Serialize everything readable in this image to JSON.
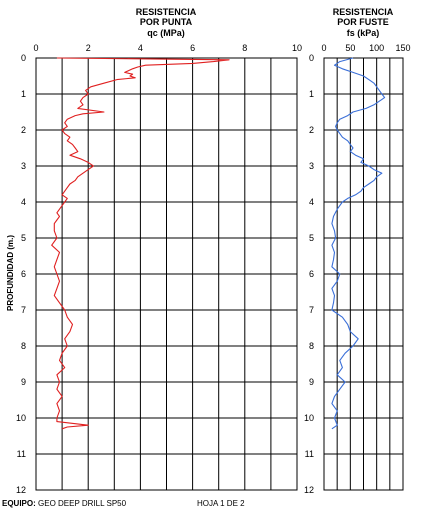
{
  "depth_axis_label": "PROFUNDIDAD (m.)",
  "footer": {
    "equipment_label": "EQUIPO:",
    "equipment_value": "GEO DEEP DRILL SP50",
    "sheet": "HOJA 1 DE 2"
  },
  "colors": {
    "qc_line": "#e02020",
    "fs_line": "#3a6fd8",
    "grid": "#000000"
  },
  "chart_data": [
    {
      "type": "line",
      "title": "RESISTENCIA POR PUNTA",
      "title_lines": [
        "RESISTENCIA",
        "POR PUNTA",
        "qc (MPa)"
      ],
      "xlabel": "qc (MPa)",
      "ylabel": "PROFUNDIDAD (m.)",
      "xlim": [
        0,
        10
      ],
      "ylim": [
        0,
        12
      ],
      "x_ticks": [
        0,
        2,
        4,
        6,
        8,
        10
      ],
      "y_ticks": [
        0,
        1,
        2,
        3,
        4,
        5,
        6,
        7,
        8,
        9,
        10,
        11,
        12
      ],
      "y_inverted": true,
      "grid": true,
      "series": [
        {
          "color": "#e02020",
          "depth": [
            0.0,
            0.05,
            0.1,
            0.15,
            0.2,
            0.25,
            0.3,
            0.4,
            0.45,
            0.5,
            0.55,
            0.6,
            0.7,
            0.8,
            0.9,
            1.0,
            1.1,
            1.2,
            1.3,
            1.4,
            1.5,
            1.55,
            1.6,
            1.7,
            1.8,
            1.9,
            2.0,
            2.1,
            2.2,
            2.3,
            2.4,
            2.5,
            2.6,
            2.7,
            2.8,
            2.9,
            3.0,
            3.1,
            3.2,
            3.3,
            3.4,
            3.5,
            3.6,
            3.7,
            3.8,
            3.9,
            4.0,
            4.1,
            4.2,
            4.3,
            4.4,
            4.5,
            4.6,
            4.8,
            5.0,
            5.2,
            5.4,
            5.6,
            5.8,
            6.0,
            6.2,
            6.4,
            6.6,
            6.8,
            7.0,
            7.2,
            7.4,
            7.6,
            7.8,
            8.0,
            8.2,
            8.4,
            8.6,
            8.8,
            9.0,
            9.2,
            9.4,
            9.6,
            9.8,
            10.0,
            10.1,
            10.2,
            10.25,
            10.3
          ],
          "qc": [
            0.8,
            7.4,
            6.8,
            6.0,
            4.2,
            3.9,
            3.7,
            3.4,
            3.7,
            3.6,
            3.8,
            3.1,
            2.6,
            2.1,
            1.9,
            2.0,
            1.8,
            1.7,
            1.8,
            1.6,
            2.6,
            1.8,
            1.5,
            1.2,
            1.1,
            1.2,
            1.0,
            1.1,
            1.3,
            1.2,
            1.4,
            1.5,
            1.6,
            1.3,
            1.7,
            2.0,
            2.2,
            2.0,
            1.8,
            1.6,
            1.5,
            1.3,
            1.2,
            1.1,
            1.0,
            1.2,
            1.1,
            1.0,
            0.9,
            0.8,
            0.9,
            0.8,
            0.7,
            0.7,
            0.8,
            0.6,
            0.9,
            0.8,
            0.7,
            0.8,
            0.9,
            0.8,
            0.7,
            0.9,
            1.1,
            1.2,
            1.4,
            1.3,
            1.1,
            1.2,
            1.0,
            0.9,
            1.1,
            0.8,
            0.9,
            0.8,
            1.0,
            0.8,
            0.9,
            0.8,
            0.8,
            2.0,
            1.2,
            1.0
          ]
        }
      ]
    },
    {
      "type": "line",
      "title": "RESISTENCIA POR FUSTE",
      "title_lines": [
        "RESISTENCIA",
        "POR FUSTE",
        "fs (kPa)"
      ],
      "xlabel": "fs (kPa)",
      "ylabel": "PROFUNDIDAD (m.)",
      "xlim": [
        0,
        150
      ],
      "ylim": [
        0,
        12
      ],
      "x_ticks": [
        0,
        50,
        100,
        150
      ],
      "y_ticks": [
        0,
        1,
        2,
        3,
        4,
        5,
        6,
        7,
        8,
        9,
        10,
        11,
        12
      ],
      "y_inverted": true,
      "grid": true,
      "series": [
        {
          "color": "#3a6fd8",
          "depth": [
            0.0,
            0.1,
            0.2,
            0.3,
            0.4,
            0.5,
            0.6,
            0.7,
            0.8,
            0.9,
            1.0,
            1.1,
            1.2,
            1.3,
            1.4,
            1.5,
            1.6,
            1.7,
            1.8,
            1.9,
            2.0,
            2.1,
            2.2,
            2.3,
            2.4,
            2.5,
            2.6,
            2.7,
            2.8,
            2.9,
            3.0,
            3.1,
            3.2,
            3.3,
            3.4,
            3.5,
            3.6,
            3.7,
            3.8,
            3.9,
            4.0,
            4.2,
            4.4,
            4.6,
            4.8,
            5.0,
            5.2,
            5.4,
            5.6,
            5.8,
            6.0,
            6.2,
            6.4,
            6.6,
            6.8,
            7.0,
            7.2,
            7.4,
            7.6,
            7.8,
            8.0,
            8.2,
            8.4,
            8.6,
            8.8,
            9.0,
            9.2,
            9.4,
            9.6,
            9.8,
            10.0,
            10.2,
            10.3
          ],
          "fs": [
            55,
            30,
            20,
            35,
            55,
            75,
            85,
            95,
            100,
            105,
            110,
            115,
            105,
            95,
            80,
            55,
            45,
            30,
            25,
            22,
            25,
            30,
            35,
            45,
            50,
            55,
            50,
            60,
            75,
            70,
            85,
            95,
            110,
            100,
            95,
            85,
            75,
            70,
            60,
            45,
            35,
            25,
            18,
            15,
            20,
            22,
            15,
            20,
            18,
            15,
            30,
            25,
            15,
            20,
            18,
            15,
            35,
            45,
            50,
            65,
            55,
            40,
            30,
            35,
            25,
            40,
            30,
            20,
            15,
            25,
            20,
            25,
            15
          ]
        }
      ]
    }
  ]
}
